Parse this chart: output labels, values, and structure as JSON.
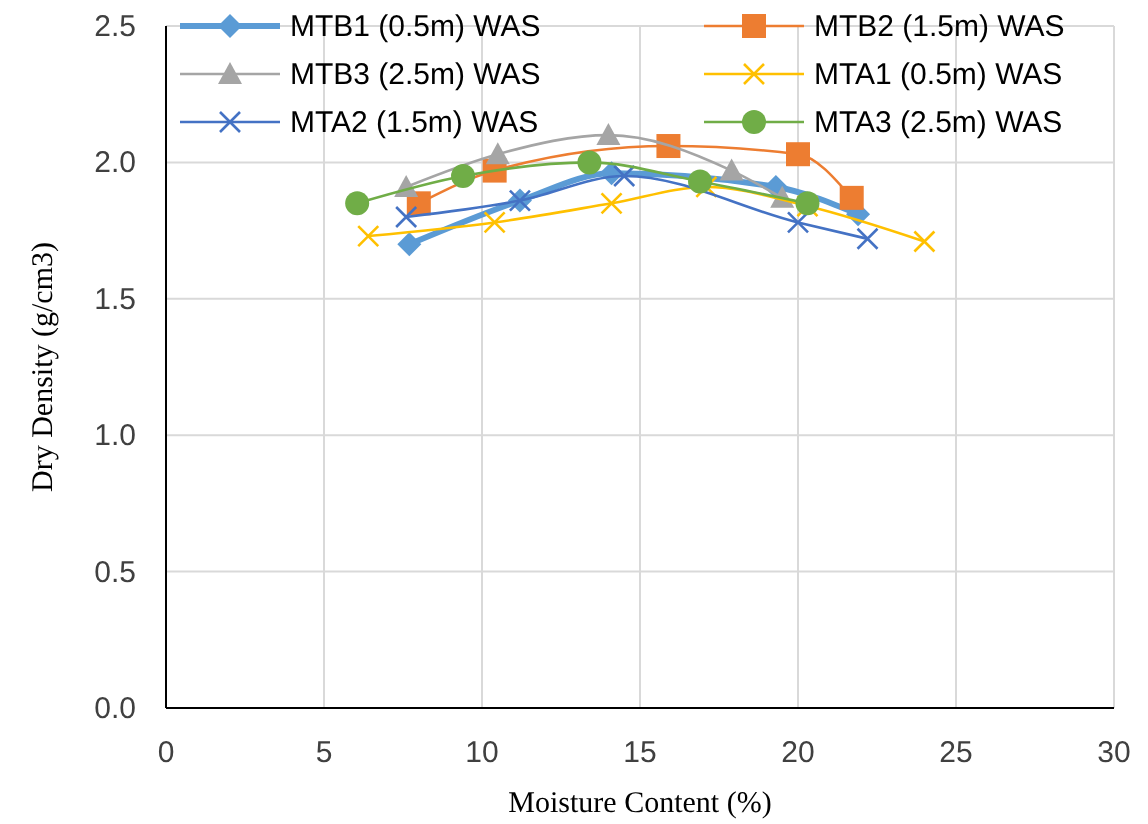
{
  "chart_data": {
    "type": "line",
    "xlabel": "Moisture Content (%)",
    "ylabel": "Dry Density (g/cm3)",
    "xlim": [
      0,
      30
    ],
    "xticks": [
      0,
      5,
      10,
      15,
      20,
      25,
      30
    ],
    "ylim": [
      0,
      2.5
    ],
    "yticks": [
      {
        "value": 0,
        "label": "0.0"
      },
      0.5,
      {
        "value": 1,
        "label": "1.0"
      },
      1.5,
      {
        "value": 2,
        "label": "2.0"
      },
      2.5
    ],
    "grid": true,
    "legend": "top",
    "series": [
      {
        "name": "MTB1 (0.5m) WAS",
        "color": "#5b9bd5",
        "marker": "diamond",
        "x": [
          7.7,
          11.2,
          14.1,
          19.3,
          21.9
        ],
        "values": [
          1.7,
          1.86,
          1.96,
          1.91,
          1.81
        ]
      },
      {
        "name": "MTB2 (1.5m) WAS",
        "color": "#ed7d31",
        "marker": "square",
        "x": [
          8.0,
          10.4,
          15.9,
          20.0,
          21.7
        ],
        "values": [
          1.85,
          1.97,
          2.06,
          2.03,
          1.87
        ]
      },
      {
        "name": "MTB3 (2.5m) WAS",
        "color": "#a5a5a5",
        "marker": "triangle",
        "x": [
          7.6,
          10.5,
          14.0,
          17.9,
          19.5
        ],
        "values": [
          1.91,
          2.03,
          2.1,
          1.97,
          1.87
        ]
      },
      {
        "name": "MTA1 (0.5m) WAS",
        "color": "#ffc000",
        "marker": "cross",
        "x": [
          6.4,
          10.4,
          14.1,
          17.1,
          20.3,
          24.0
        ],
        "values": [
          1.73,
          1.78,
          1.85,
          1.91,
          1.84,
          1.71
        ]
      },
      {
        "name": "MTA2 (1.5m) WAS",
        "color": "#4472c4",
        "marker": "cross",
        "x": [
          7.6,
          11.2,
          14.5,
          20.0,
          22.2
        ],
        "values": [
          1.8,
          1.86,
          1.95,
          1.78,
          1.72
        ]
      },
      {
        "name": "MTA3 (2.5m) WAS",
        "color": "#70ad47",
        "marker": "circle",
        "x": [
          6.05,
          9.4,
          13.4,
          16.9,
          20.3
        ],
        "values": [
          1.85,
          1.95,
          2.0,
          1.93,
          1.85
        ]
      }
    ]
  }
}
